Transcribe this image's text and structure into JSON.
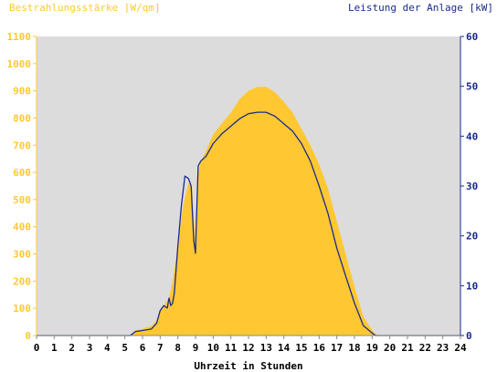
{
  "chart_data": {
    "type": "area",
    "left_axis": {
      "label": "Bestrahlungsstärke [W/qm]",
      "ylim": [
        0,
        1100
      ],
      "ticks": [
        0,
        100,
        200,
        300,
        400,
        500,
        600,
        700,
        800,
        900,
        1000,
        1100
      ],
      "color": "#ffc832"
    },
    "right_axis": {
      "label": "Leistung der Anlage [kW]",
      "ylim": [
        0,
        60
      ],
      "ticks": [
        0,
        10,
        20,
        30,
        40,
        50,
        60
      ],
      "color": "#1a2a8c"
    },
    "x_axis": {
      "label": "Uhrzeit in Stunden",
      "xlim": [
        0,
        24
      ],
      "ticks": [
        0,
        1,
        2,
        3,
        4,
        5,
        6,
        7,
        8,
        9,
        10,
        11,
        12,
        13,
        14,
        15,
        16,
        17,
        18,
        19,
        20,
        21,
        22,
        23,
        24
      ]
    },
    "plot_background": "#dcdcdc",
    "series": [
      {
        "axis": "left",
        "color": "#ffc832",
        "style": "area",
        "x": [
          0,
          5.3,
          5.6,
          6.0,
          6.5,
          6.8,
          7.0,
          7.2,
          7.5,
          7.7,
          8.0,
          8.3,
          8.6,
          8.8,
          9.0,
          9.1,
          9.3,
          9.6,
          10.0,
          10.5,
          11.0,
          11.5,
          12.0,
          12.5,
          13.0,
          13.5,
          14.0,
          14.5,
          15.0,
          15.5,
          16.0,
          16.5,
          17.0,
          17.5,
          18.0,
          18.5,
          19.0,
          19.2,
          19.5,
          24
        ],
        "y": [
          0,
          0,
          20,
          25,
          35,
          55,
          90,
          110,
          140,
          200,
          330,
          480,
          560,
          550,
          340,
          580,
          640,
          680,
          740,
          780,
          820,
          870,
          900,
          915,
          915,
          895,
          860,
          820,
          760,
          700,
          630,
          540,
          420,
          300,
          180,
          70,
          20,
          5,
          0,
          0
        ]
      },
      {
        "axis": "right",
        "color": "#1a2a8c",
        "style": "line",
        "x": [
          0,
          5.3,
          5.6,
          6.0,
          6.5,
          6.8,
          7.0,
          7.2,
          7.4,
          7.5,
          7.6,
          7.7,
          7.8,
          8.0,
          8.2,
          8.4,
          8.6,
          8.75,
          8.9,
          9.0,
          9.05,
          9.15,
          9.3,
          9.6,
          10.0,
          10.5,
          11.0,
          11.5,
          12.0,
          12.5,
          13.0,
          13.5,
          14.0,
          14.5,
          15.0,
          15.5,
          16.0,
          16.5,
          17.0,
          17.5,
          18.0,
          18.5,
          19.0,
          19.2,
          24
        ],
        "y": [
          0,
          0,
          0.8,
          1.0,
          1.3,
          2.5,
          5.0,
          6.0,
          5.5,
          7.5,
          6.0,
          6.5,
          8.5,
          18.0,
          26.0,
          32.0,
          31.5,
          30.0,
          19.0,
          16.5,
          23.0,
          34.0,
          35.0,
          36.0,
          38.5,
          40.5,
          42.0,
          43.5,
          44.5,
          44.8,
          44.8,
          44.0,
          42.5,
          41.0,
          38.5,
          35.0,
          30.0,
          24.5,
          17.5,
          12.0,
          6.5,
          2.0,
          0.5,
          0,
          0
        ]
      }
    ]
  }
}
